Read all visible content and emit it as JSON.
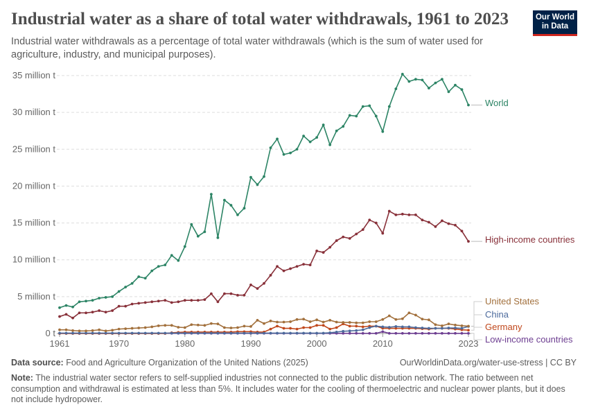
{
  "header": {
    "title": "Industrial water as a share of total water withdrawals, 1961 to 2023",
    "subtitle": "Industrial water withdrawals as a percentage of total water withdrawals (which is the sum of water used for agriculture, industry, and municipal purposes).",
    "logo_line1": "Our World",
    "logo_line2": "in Data"
  },
  "footer": {
    "source_label": "Data source:",
    "source_text": "Food and Agriculture Organization of the United Nations (2025)",
    "url": "OurWorldinData.org/water-use-stress | CC BY",
    "note_label": "Note:",
    "note_text": "The industrial water sector refers to self-supplied industries not connected to the public distribution network. The ratio between net consumption and withdrawal is estimated at less than 5%. It includes water for the cooling of thermoelectric and nuclear power plants, but it does not include hydropower."
  },
  "chart_data": {
    "type": "line",
    "x_start": 1961,
    "x_end": 2023,
    "xlim": [
      1961,
      2023
    ],
    "ylim": [
      0,
      35
    ],
    "x_ticks": [
      1961,
      1970,
      1980,
      1990,
      2000,
      2010,
      2023
    ],
    "x_tick_labels": [
      "1961",
      "1970",
      "1980",
      "1990",
      "2000",
      "2010",
      "2023"
    ],
    "y_ticks": [
      0,
      5,
      10,
      15,
      20,
      25,
      30,
      35
    ],
    "y_tick_labels": [
      "0 t",
      "5 million t",
      "10 million t",
      "15 million t",
      "20 million t",
      "25 million t",
      "30 million t",
      "35 million t"
    ],
    "grid": "horizontal dashed",
    "legend": "right, end-of-line labels",
    "series": [
      {
        "name": "World",
        "color": "#2c8465",
        "values": [
          3.5,
          3.8,
          3.6,
          4.3,
          4.4,
          4.5,
          4.8,
          4.9,
          5.0,
          5.7,
          6.3,
          6.8,
          7.7,
          7.5,
          8.5,
          9.1,
          9.3,
          10.6,
          9.9,
          11.8,
          14.8,
          13.2,
          13.8,
          18.9,
          13.0,
          18.1,
          17.4,
          16.1,
          17.0,
          21.2,
          20.2,
          21.3,
          25.2,
          26.4,
          24.3,
          24.5,
          25.0,
          26.8,
          26.0,
          26.6,
          28.3,
          25.6,
          27.5,
          28.1,
          29.6,
          29.5,
          30.8,
          30.9,
          29.5,
          27.4,
          30.8,
          33.2,
          35.2,
          34.2,
          34.5,
          34.4,
          33.3,
          34.0,
          34.5,
          32.8,
          33.7,
          33.1,
          31.0
        ]
      },
      {
        "name": "High-income countries",
        "color": "#883039",
        "values": [
          2.3,
          2.6,
          2.1,
          2.8,
          2.8,
          2.9,
          3.1,
          2.9,
          3.1,
          3.7,
          3.7,
          4.0,
          4.1,
          4.2,
          4.3,
          4.4,
          4.5,
          4.2,
          4.3,
          4.5,
          4.5,
          4.5,
          4.6,
          5.4,
          4.3,
          5.4,
          5.4,
          5.2,
          5.2,
          6.6,
          6.1,
          6.8,
          7.9,
          9.1,
          8.5,
          8.8,
          9.1,
          9.4,
          9.3,
          11.2,
          11.0,
          11.7,
          12.6,
          13.1,
          12.9,
          13.5,
          14.1,
          15.4,
          15.0,
          13.6,
          16.6,
          16.1,
          16.2,
          16.1,
          16.1,
          15.4,
          15.1,
          14.5,
          15.3,
          14.9,
          14.7,
          13.9,
          12.5
        ]
      },
      {
        "name": "United States",
        "color": "#a2703c",
        "values": [
          0.5,
          0.5,
          0.4,
          0.35,
          0.35,
          0.4,
          0.5,
          0.35,
          0.45,
          0.6,
          0.65,
          0.7,
          0.75,
          0.8,
          0.9,
          1.05,
          1.1,
          1.1,
          0.85,
          0.8,
          1.2,
          1.15,
          1.1,
          1.35,
          1.3,
          0.8,
          0.75,
          0.8,
          1.0,
          0.95,
          1.8,
          1.35,
          1.7,
          1.55,
          1.55,
          1.6,
          1.9,
          1.95,
          1.6,
          1.85,
          1.55,
          1.8,
          1.55,
          1.5,
          1.5,
          1.45,
          1.45,
          1.6,
          1.6,
          1.9,
          2.4,
          1.9,
          2.0,
          2.8,
          2.5,
          1.95,
          1.85,
          1.2,
          1.05,
          1.3,
          1.15,
          1.05,
          1.0
        ]
      },
      {
        "name": "China",
        "color": "#4c6a9c",
        "values": [
          0.05,
          0.05,
          0.05,
          0.05,
          0.05,
          0.05,
          0.05,
          0.05,
          0.05,
          0.05,
          0.05,
          0.05,
          0.05,
          0.05,
          0.05,
          0.05,
          0.05,
          0.05,
          0.05,
          0.05,
          0.05,
          0.05,
          0.05,
          0.05,
          0.05,
          0.05,
          0.05,
          0.05,
          0.05,
          0.05,
          0.05,
          0.05,
          0.05,
          0.05,
          0.05,
          0.05,
          0.05,
          0.05,
          0.05,
          0.05,
          0.05,
          0.1,
          0.2,
          0.3,
          0.35,
          0.4,
          0.5,
          0.8,
          1.0,
          0.9,
          0.85,
          0.95,
          0.9,
          0.9,
          0.8,
          0.75,
          0.7,
          0.7,
          0.7,
          0.75,
          0.75,
          0.7,
          0.95
        ]
      },
      {
        "name": "Germany",
        "color": "#c0471b",
        "values": [
          0,
          0,
          0,
          0,
          0,
          0,
          0,
          0,
          0,
          0,
          0,
          0,
          0,
          0,
          0,
          0,
          0,
          0.1,
          0.15,
          0.2,
          0.2,
          0.2,
          0.2,
          0.2,
          0.2,
          0.2,
          0.2,
          0.25,
          0.25,
          0.25,
          0.2,
          0.2,
          0.6,
          1.0,
          0.7,
          0.7,
          0.6,
          0.8,
          0.8,
          1.1,
          1.1,
          0.6,
          0.8,
          1.3,
          1.0,
          1.0,
          0.9,
          1.0,
          1.0,
          0.7,
          0.7,
          0.7,
          0.7,
          0.7,
          0.7,
          0.65,
          0.6,
          0.7,
          0.7,
          0.7,
          0.6,
          0.5,
          0.45
        ]
      },
      {
        "name": "Low-income countries",
        "color": "#6d3e91",
        "values": [
          0.02,
          0.02,
          0.02,
          0.02,
          0.02,
          0.02,
          0.02,
          0.02,
          0.02,
          0.02,
          0.02,
          0.02,
          0.02,
          0.02,
          0.02,
          0.02,
          0.02,
          0.02,
          0.02,
          0.02,
          0.02,
          0.02,
          0.02,
          0.02,
          0.02,
          0.02,
          0.02,
          0.02,
          0.02,
          0.02,
          0.02,
          0.02,
          0.02,
          0.02,
          0.02,
          0.02,
          0.02,
          0.02,
          0.02,
          0.02,
          0.02,
          0.02,
          0.02,
          0.02,
          0.02,
          0.02,
          0.02,
          0.02,
          0.02,
          0.25,
          0.02,
          0.02,
          0.02,
          0.02,
          0.02,
          0.02,
          0.02,
          0.02,
          0.02,
          0.02,
          0.02,
          0.02,
          0.02
        ]
      }
    ]
  }
}
